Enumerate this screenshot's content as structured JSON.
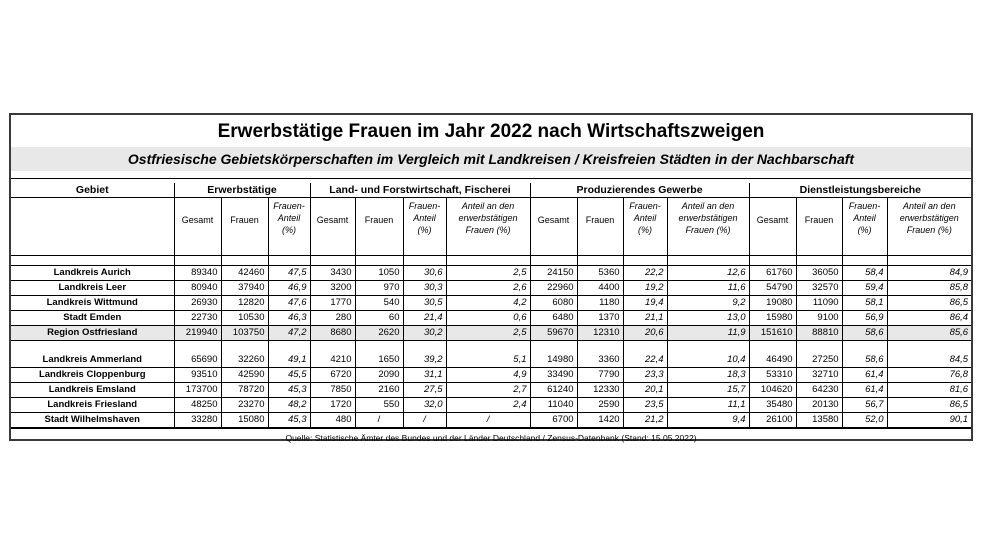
{
  "title": "Erwerbstätige Frauen im Jahr 2022 nach Wirtschaftszweigen",
  "subtitle": "Ostfriesische Gebietskörperschaften im Vergleich mit Landkreisen / Kreisfreien Städten in der Nachbarschaft",
  "headers": {
    "gebiet": "Gebiet",
    "groups": [
      "Erwerbstätige",
      "Land- und Forstwirtschaft, Fischerei",
      "Produzierendes Gewerbe",
      "Dienstleistungsbereiche"
    ],
    "gesamt": "Gesamt",
    "frauen": "Frauen",
    "anteil_l1": "Frauen-",
    "anteil_l2": "Anteil",
    "anteil_l3": "(%)",
    "share_l1": "Anteil an den",
    "share_l2": "erwerbstätigen",
    "share_l3": "Frauen (%)"
  },
  "rows_group1": [
    {
      "name": "Landkreis Aurich",
      "v": [
        "89340",
        "42460",
        "47,5",
        "3430",
        "1050",
        "30,6",
        "2,5",
        "24150",
        "5360",
        "22,2",
        "12,6",
        "61760",
        "36050",
        "58,4",
        "84,9"
      ]
    },
    {
      "name": "Landkreis Leer",
      "v": [
        "80940",
        "37940",
        "46,9",
        "3200",
        "970",
        "30,3",
        "2,6",
        "22960",
        "4400",
        "19,2",
        "11,6",
        "54790",
        "32570",
        "59,4",
        "85,8"
      ]
    },
    {
      "name": "Landkreis Wittmund",
      "v": [
        "26930",
        "12820",
        "47,6",
        "1770",
        "540",
        "30,5",
        "4,2",
        "6080",
        "1180",
        "19,4",
        "9,2",
        "19080",
        "11090",
        "58,1",
        "86,5"
      ]
    },
    {
      "name": "Stadt Emden",
      "v": [
        "22730",
        "10530",
        "46,3",
        "280",
        "60",
        "21,4",
        "0,6",
        "6480",
        "1370",
        "21,1",
        "13,0",
        "15980",
        "9100",
        "56,9",
        "86,4"
      ]
    },
    {
      "name": "Region Ostfriesland",
      "v": [
        "219940",
        "103750",
        "47,2",
        "8680",
        "2620",
        "30,2",
        "2,5",
        "59670",
        "12310",
        "20,6",
        "11,9",
        "151610",
        "88810",
        "58,6",
        "85,6"
      ]
    }
  ],
  "rows_group2": [
    {
      "name": "Landkreis Ammerland",
      "v": [
        "65690",
        "32260",
        "49,1",
        "4210",
        "1650",
        "39,2",
        "5,1",
        "14980",
        "3360",
        "22,4",
        "10,4",
        "46490",
        "27250",
        "58,6",
        "84,5"
      ]
    },
    {
      "name": "Landkreis Cloppenburg",
      "v": [
        "93510",
        "42590",
        "45,5",
        "6720",
        "2090",
        "31,1",
        "4,9",
        "33490",
        "7790",
        "23,3",
        "18,3",
        "53310",
        "32710",
        "61,4",
        "76,8"
      ]
    },
    {
      "name": "Landkreis Emsland",
      "v": [
        "173700",
        "78720",
        "45,3",
        "7850",
        "2160",
        "27,5",
        "2,7",
        "61240",
        "12330",
        "20,1",
        "15,7",
        "104620",
        "64230",
        "61,4",
        "81,6"
      ]
    },
    {
      "name": "Landkreis Friesland",
      "v": [
        "48250",
        "23270",
        "48,2",
        "1720",
        "550",
        "32,0",
        "2,4",
        "11040",
        "2590",
        "23,5",
        "11,1",
        "35480",
        "20130",
        "56,7",
        "86,5"
      ]
    },
    {
      "name": "Stadt Wilhelmshaven",
      "v": [
        "33280",
        "15080",
        "45,3",
        "480",
        "/",
        "/",
        "/",
        "6700",
        "1420",
        "21,2",
        "9,4",
        "26100",
        "13580",
        "52,0",
        "90,1"
      ]
    }
  ],
  "source": "Quelle: Statistische Ämter des Bundes und der Länder Deutschland / Zensus-Datenbank (Stand: 15.05.2022)"
}
